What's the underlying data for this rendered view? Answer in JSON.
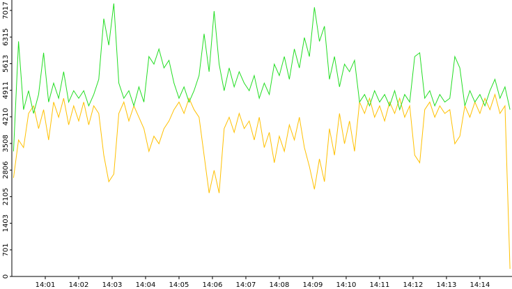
{
  "chart_data": {
    "type": "line",
    "x": [
      840.05,
      840.2,
      840.35,
      840.5,
      840.65,
      840.8,
      840.95,
      841.1,
      841.25,
      841.4,
      841.55,
      841.7,
      841.85,
      842.0,
      842.15,
      842.3,
      842.45,
      842.6,
      842.75,
      842.9,
      843.05,
      843.2,
      843.35,
      843.5,
      843.65,
      843.8,
      843.95,
      844.1,
      844.25,
      844.4,
      844.55,
      844.7,
      844.85,
      845.0,
      845.15,
      845.3,
      845.45,
      845.6,
      845.75,
      845.9,
      846.05,
      846.2,
      846.35,
      846.5,
      846.65,
      846.8,
      846.95,
      847.1,
      847.25,
      847.4,
      847.55,
      847.7,
      847.85,
      848.0,
      848.15,
      848.3,
      848.45,
      848.6,
      848.75,
      848.9,
      849.05,
      849.2,
      849.35,
      849.5,
      849.65,
      849.8,
      849.95,
      850.1,
      850.25,
      850.4,
      850.55,
      850.7,
      850.85,
      851.0,
      851.15,
      851.3,
      851.45,
      851.6,
      851.75,
      851.9,
      852.05,
      852.2,
      852.35,
      852.5,
      852.65,
      852.8,
      852.95,
      853.1,
      853.25,
      853.4,
      853.55,
      853.7,
      853.85,
      854.0,
      854.15,
      854.3,
      854.45,
      854.6,
      854.75,
      854.9
    ],
    "series": [
      {
        "color": "#ffc000",
        "values": [
          2600,
          3600,
          3400,
          4300,
          4500,
          3900,
          4400,
          3600,
          4600,
          4200,
          4700,
          4000,
          4500,
          4100,
          4600,
          4000,
          4500,
          4300,
          3200,
          2500,
          2700,
          4300,
          4600,
          4100,
          4500,
          4200,
          3900,
          3300,
          3700,
          3500,
          3900,
          4100,
          4400,
          4600,
          4300,
          4700,
          4400,
          4200,
          3200,
          2200,
          2800,
          2200,
          3900,
          4200,
          3800,
          4300,
          3900,
          4100,
          3600,
          4200,
          3400,
          3800,
          3000,
          3700,
          3300,
          4000,
          3600,
          4200,
          3400,
          2900,
          2300,
          3100,
          2500,
          3900,
          3200,
          4300,
          3500,
          4100,
          3300,
          4600,
          4300,
          4700,
          4200,
          4500,
          4100,
          4600,
          4300,
          4700,
          4200,
          4500,
          3200,
          3000,
          4400,
          4600,
          4200,
          4500,
          4300,
          4400,
          3500,
          3700,
          4500,
          4200,
          4600,
          4300,
          4700,
          4400,
          4800,
          4300,
          4500,
          200
        ]
      },
      {
        "color": "#22dd22",
        "values": [
          3300,
          6200,
          4400,
          4900,
          4300,
          4800,
          5900,
          4600,
          5100,
          4700,
          5400,
          4600,
          4900,
          4700,
          4900,
          4500,
          4800,
          5200,
          6800,
          6100,
          7200,
          5100,
          4700,
          4900,
          4500,
          5000,
          4600,
          5800,
          5600,
          6000,
          5500,
          5700,
          5100,
          4700,
          5000,
          4600,
          4900,
          5300,
          6400,
          5400,
          7000,
          5600,
          4900,
          5500,
          5000,
          5400,
          5100,
          4900,
          5300,
          4700,
          5100,
          4800,
          5600,
          5300,
          5800,
          5200,
          6000,
          5500,
          6300,
          5800,
          7100,
          6200,
          6600,
          5200,
          5800,
          5000,
          5600,
          5400,
          5700,
          4600,
          4800,
          4500,
          4900,
          4600,
          4800,
          4500,
          4900,
          4400,
          4800,
          4600,
          5800,
          5900,
          4700,
          4900,
          4500,
          4800,
          4600,
          4700,
          5800,
          5500,
          4500,
          4900,
          4600,
          4800,
          4500,
          4900,
          5200,
          4700,
          5000,
          4400
        ]
      }
    ],
    "xlim": [
      840.0,
      854.96
    ],
    "xticks": [
      {
        "value": 841,
        "label": "14:01"
      },
      {
        "value": 842,
        "label": "14:02"
      },
      {
        "value": 843,
        "label": "14:03"
      },
      {
        "value": 844,
        "label": "14:04"
      },
      {
        "value": 845,
        "label": "14:05"
      },
      {
        "value": 846,
        "label": "14:06"
      },
      {
        "value": 847,
        "label": "14:07"
      },
      {
        "value": 848,
        "label": "14:08"
      },
      {
        "value": 849,
        "label": "14:09"
      },
      {
        "value": 850,
        "label": "14:10"
      },
      {
        "value": 851,
        "label": "14:11"
      },
      {
        "value": 852,
        "label": "14:12"
      },
      {
        "value": 853,
        "label": "14:13"
      },
      {
        "value": 854,
        "label": "14:14"
      }
    ],
    "ylim": [
      0,
      7292
    ],
    "yticks": [
      0,
      701,
      1403,
      2105,
      2806,
      3508,
      4210,
      4911,
      5613,
      6315,
      7017
    ]
  }
}
